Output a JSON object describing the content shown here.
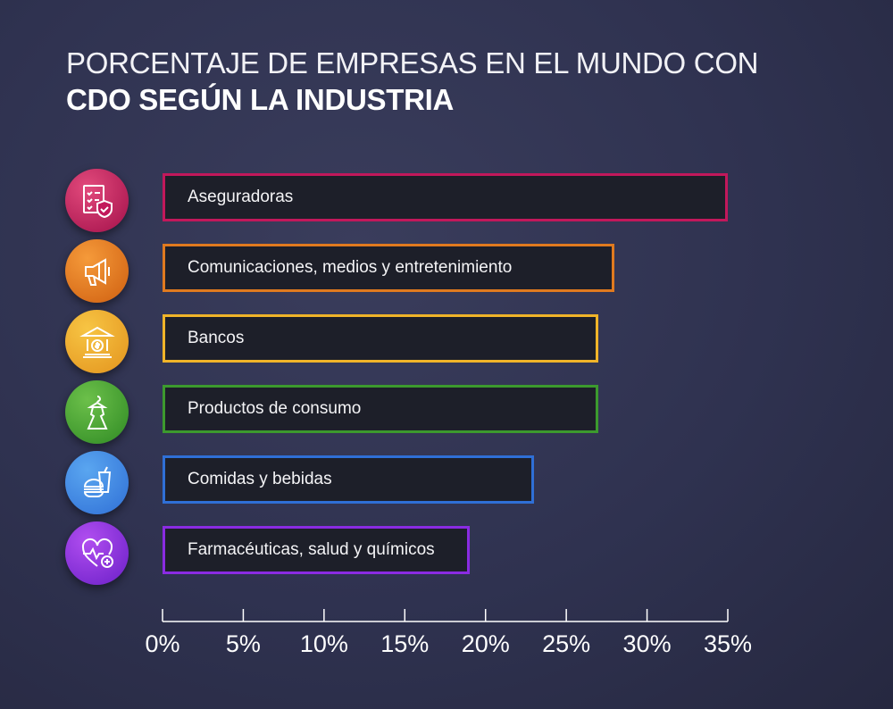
{
  "title": {
    "line1": "PORCENTAJE DE EMPRESAS EN EL MUNDO CON",
    "line2": "CDO SEGÚN LA INDUSTRIA"
  },
  "chart_data": {
    "type": "bar",
    "orientation": "horizontal",
    "title": "PORCENTAJE DE EMPRESAS EN EL MUNDO CON CDO SEGÚN LA INDUSTRIA",
    "categories": [
      "Aseguradoras",
      "Comunicaciones, medios y entretenimiento",
      "Bancos",
      "Productos de consumo",
      "Comidas y bebidas",
      "Farmacéuticas, salud y químicos"
    ],
    "values": [
      35,
      28,
      27,
      27,
      23,
      19
    ],
    "colors": [
      "#c2185b",
      "#e07a1f",
      "#f0b429",
      "#3c9a2e",
      "#2f6fd6",
      "#8a2be2"
    ],
    "icons": [
      "insurance-checklist-icon",
      "megaphone-icon",
      "bank-icon",
      "dress-icon",
      "food-drink-icon",
      "heart-health-icon"
    ],
    "xlim": [
      0,
      35
    ],
    "ticks": [
      0,
      5,
      10,
      15,
      20,
      25,
      30,
      35
    ],
    "tick_labels": [
      "0%",
      "5%",
      "10%",
      "15%",
      "20%",
      "25%",
      "30%",
      "35%"
    ],
    "xlabel": "",
    "ylabel": ""
  }
}
